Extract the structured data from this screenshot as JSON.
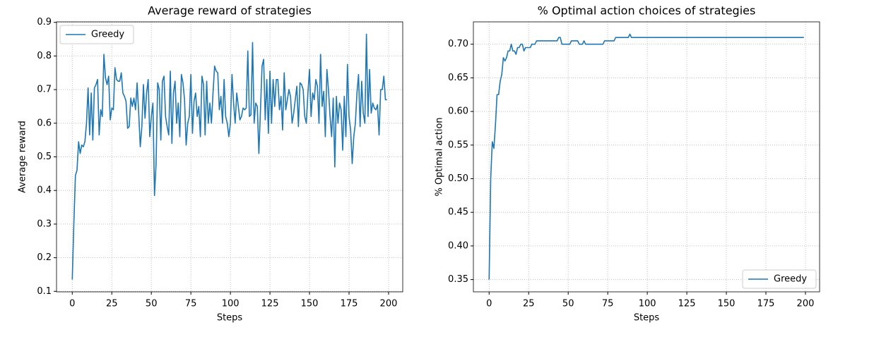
{
  "chart_data": [
    {
      "type": "line",
      "title": "Average reward of strategies",
      "xlabel": "Steps",
      "ylabel": "Average reward",
      "x": [
        0,
        1,
        2,
        3,
        4,
        5,
        6,
        7,
        8,
        9,
        10,
        11,
        12,
        13,
        14,
        15,
        16,
        17,
        18,
        19,
        20,
        21,
        22,
        23,
        24,
        25,
        26,
        27,
        28,
        29,
        30,
        31,
        32,
        33,
        34,
        35,
        36,
        37,
        38,
        39,
        40,
        41,
        42,
        43,
        44,
        45,
        46,
        47,
        48,
        49,
        50,
        51,
        52,
        53,
        54,
        55,
        56,
        57,
        58,
        59,
        60,
        61,
        62,
        63,
        64,
        65,
        66,
        67,
        68,
        69,
        70,
        71,
        72,
        73,
        74,
        75,
        76,
        77,
        78,
        79,
        80,
        81,
        82,
        83,
        84,
        85,
        86,
        87,
        88,
        89,
        90,
        91,
        92,
        93,
        94,
        95,
        96,
        97,
        98,
        99,
        100,
        101,
        102,
        103,
        104,
        105,
        106,
        107,
        108,
        109,
        110,
        111,
        112,
        113,
        114,
        115,
        116,
        117,
        118,
        119,
        120,
        121,
        122,
        123,
        124,
        125,
        126,
        127,
        128,
        129,
        130,
        131,
        132,
        133,
        134,
        135,
        136,
        137,
        138,
        139,
        140,
        141,
        142,
        143,
        144,
        145,
        146,
        147,
        148,
        149,
        150,
        151,
        152,
        153,
        154,
        155,
        156,
        157,
        158,
        159,
        160,
        161,
        162,
        163,
        164,
        165,
        166,
        167,
        168,
        169,
        170,
        171,
        172,
        173,
        174,
        175,
        176,
        177,
        178,
        179,
        180,
        181,
        182,
        183,
        184,
        185,
        186,
        187,
        188,
        189,
        190,
        191,
        192,
        193,
        194,
        195,
        196,
        197,
        198,
        199
      ],
      "series": [
        {
          "name": "Greedy",
          "color": "#1f77b4",
          "values": [
            0.135,
            0.3,
            0.445,
            0.46,
            0.545,
            0.51,
            0.535,
            0.53,
            0.545,
            0.6,
            0.705,
            0.565,
            0.69,
            0.55,
            0.705,
            0.715,
            0.73,
            0.565,
            0.64,
            0.62,
            0.805,
            0.735,
            0.715,
            0.74,
            0.61,
            0.645,
            0.64,
            0.765,
            0.73,
            0.725,
            0.725,
            0.75,
            0.69,
            0.68,
            0.665,
            0.585,
            0.59,
            0.675,
            0.65,
            0.675,
            0.64,
            0.72,
            0.63,
            0.53,
            0.59,
            0.715,
            0.615,
            0.69,
            0.73,
            0.56,
            0.62,
            0.66,
            0.385,
            0.48,
            0.72,
            0.7,
            0.55,
            0.725,
            0.74,
            0.62,
            0.59,
            0.565,
            0.755,
            0.54,
            0.69,
            0.725,
            0.6,
            0.66,
            0.56,
            0.745,
            0.72,
            0.67,
            0.535,
            0.6,
            0.62,
            0.745,
            0.57,
            0.665,
            0.69,
            0.62,
            0.65,
            0.56,
            0.74,
            0.715,
            0.565,
            0.725,
            0.6,
            0.66,
            0.6,
            0.69,
            0.77,
            0.755,
            0.75,
            0.64,
            0.68,
            0.6,
            0.73,
            0.62,
            0.6,
            0.56,
            0.6,
            0.745,
            0.66,
            0.6,
            0.69,
            0.65,
            0.61,
            0.62,
            0.645,
            0.64,
            0.645,
            0.815,
            0.62,
            0.625,
            0.84,
            0.6,
            0.66,
            0.65,
            0.51,
            0.64,
            0.77,
            0.79,
            0.61,
            0.73,
            0.57,
            0.755,
            0.6,
            0.73,
            0.65,
            0.73,
            0.73,
            0.64,
            0.68,
            0.58,
            0.75,
            0.64,
            0.67,
            0.7,
            0.68,
            0.6,
            0.63,
            0.67,
            0.71,
            0.59,
            0.72,
            0.715,
            0.7,
            0.62,
            0.6,
            0.69,
            0.76,
            0.62,
            0.69,
            0.67,
            0.73,
            0.71,
            0.6,
            0.805,
            0.65,
            0.695,
            0.56,
            0.76,
            0.7,
            0.62,
            0.56,
            0.675,
            0.47,
            0.68,
            0.6,
            0.66,
            0.64,
            0.52,
            0.68,
            0.56,
            0.775,
            0.62,
            0.58,
            0.48,
            0.56,
            0.6,
            0.69,
            0.745,
            0.59,
            0.725,
            0.63,
            0.6,
            0.865,
            0.62,
            0.76,
            0.63,
            0.66,
            0.645,
            0.64,
            0.655,
            0.565,
            0.7,
            0.7,
            0.74,
            0.67,
            0.67
          ]
        }
      ],
      "xlim": [
        -9.95,
        208.95
      ],
      "xticks": [
        0,
        25,
        50,
        75,
        100,
        125,
        150,
        175,
        200
      ],
      "ylim": [
        0.0985,
        0.9015
      ],
      "yticks": [
        0.1,
        0.2,
        0.3,
        0.4,
        0.5,
        0.6,
        0.7,
        0.8,
        0.9
      ],
      "grid": true,
      "legend": "upper left"
    },
    {
      "type": "line",
      "title": "% Optimal action choices of strategies",
      "xlabel": "Steps",
      "ylabel": "% Optimal action",
      "x": [
        0,
        1,
        2,
        3,
        4,
        5,
        6,
        7,
        8,
        9,
        10,
        11,
        12,
        13,
        14,
        15,
        16,
        17,
        18,
        19,
        20,
        21,
        22,
        23,
        24,
        25,
        26,
        27,
        28,
        29,
        30,
        31,
        32,
        33,
        34,
        35,
        36,
        37,
        38,
        39,
        40,
        41,
        42,
        43,
        44,
        45,
        46,
        47,
        48,
        49,
        50,
        51,
        52,
        53,
        54,
        55,
        56,
        57,
        58,
        59,
        60,
        61,
        62,
        63,
        64,
        65,
        66,
        67,
        68,
        69,
        70,
        71,
        72,
        73,
        74,
        75,
        76,
        77,
        78,
        79,
        80,
        81,
        82,
        83,
        84,
        85,
        86,
        87,
        88,
        89,
        90,
        91,
        92,
        93,
        94,
        95,
        96,
        97,
        98,
        99,
        100,
        101,
        102,
        103,
        104,
        105,
        106,
        107,
        108,
        109,
        110,
        111,
        112,
        113,
        114,
        115,
        116,
        117,
        118,
        119,
        120,
        121,
        122,
        123,
        124,
        125,
        126,
        127,
        128,
        129,
        130,
        131,
        132,
        133,
        134,
        135,
        136,
        137,
        138,
        139,
        140,
        141,
        142,
        143,
        144,
        145,
        146,
        147,
        148,
        149,
        150,
        151,
        152,
        153,
        154,
        155,
        156,
        157,
        158,
        159,
        160,
        161,
        162,
        163,
        164,
        165,
        166,
        167,
        168,
        169,
        170,
        171,
        172,
        173,
        174,
        175,
        176,
        177,
        178,
        179,
        180,
        181,
        182,
        183,
        184,
        185,
        186,
        187,
        188,
        189,
        190,
        191,
        192,
        193,
        194,
        195,
        196,
        197,
        198,
        199
      ],
      "series": [
        {
          "name": "Greedy",
          "color": "#1f77b4",
          "values": [
            0.35,
            0.5,
            0.555,
            0.545,
            0.58,
            0.625,
            0.625,
            0.645,
            0.655,
            0.68,
            0.675,
            0.68,
            0.69,
            0.69,
            0.7,
            0.69,
            0.69,
            0.685,
            0.695,
            0.695,
            0.7,
            0.7,
            0.69,
            0.695,
            0.695,
            0.695,
            0.695,
            0.7,
            0.7,
            0.7,
            0.705,
            0.705,
            0.705,
            0.705,
            0.705,
            0.705,
            0.705,
            0.705,
            0.705,
            0.705,
            0.705,
            0.705,
            0.705,
            0.705,
            0.71,
            0.71,
            0.7,
            0.7,
            0.7,
            0.7,
            0.7,
            0.7,
            0.705,
            0.705,
            0.705,
            0.705,
            0.705,
            0.7,
            0.7,
            0.7,
            0.705,
            0.7,
            0.7,
            0.7,
            0.7,
            0.7,
            0.7,
            0.7,
            0.7,
            0.7,
            0.7,
            0.7,
            0.7,
            0.705,
            0.705,
            0.705,
            0.705,
            0.705,
            0.705,
            0.705,
            0.71,
            0.71,
            0.71,
            0.71,
            0.71,
            0.71,
            0.71,
            0.71,
            0.71,
            0.715,
            0.71,
            0.71,
            0.71,
            0.71,
            0.71,
            0.71,
            0.71,
            0.71,
            0.71,
            0.71,
            0.71,
            0.71,
            0.71,
            0.71,
            0.71,
            0.71,
            0.71,
            0.71,
            0.71,
            0.71,
            0.71,
            0.71,
            0.71,
            0.71,
            0.71,
            0.71,
            0.71,
            0.71,
            0.71,
            0.71,
            0.71,
            0.71,
            0.71,
            0.71,
            0.71,
            0.71,
            0.71,
            0.71,
            0.71,
            0.71,
            0.71,
            0.71,
            0.71,
            0.71,
            0.71,
            0.71,
            0.71,
            0.71,
            0.71,
            0.71,
            0.71,
            0.71,
            0.71,
            0.71,
            0.71,
            0.71,
            0.71,
            0.71,
            0.71,
            0.71,
            0.71,
            0.71,
            0.71,
            0.71,
            0.71,
            0.71,
            0.71,
            0.71,
            0.71,
            0.71,
            0.71,
            0.71,
            0.71,
            0.71,
            0.71,
            0.71,
            0.71,
            0.71,
            0.71,
            0.71,
            0.71,
            0.71,
            0.71,
            0.71,
            0.71,
            0.71,
            0.71,
            0.71,
            0.71,
            0.71,
            0.71,
            0.71,
            0.71,
            0.71,
            0.71,
            0.71,
            0.71,
            0.71,
            0.71,
            0.71,
            0.71,
            0.71,
            0.71,
            0.71,
            0.71,
            0.71,
            0.71,
            0.71,
            0.71,
            0.71
          ]
        }
      ],
      "xlim": [
        -9.95,
        208.95
      ],
      "xticks": [
        0,
        25,
        50,
        75,
        100,
        125,
        150,
        175,
        200
      ],
      "ylim": [
        0.33175,
        0.73325
      ],
      "yticks": [
        0.35,
        {
          "value": 0.4,
          "label": "0.40"
        },
        0.45,
        {
          "value": 0.5,
          "label": "0.50"
        },
        0.55,
        {
          "value": 0.6,
          "label": "0.60"
        },
        0.65,
        {
          "value": 0.7,
          "label": "0.70"
        }
      ],
      "grid": true,
      "legend": "lower right"
    }
  ]
}
